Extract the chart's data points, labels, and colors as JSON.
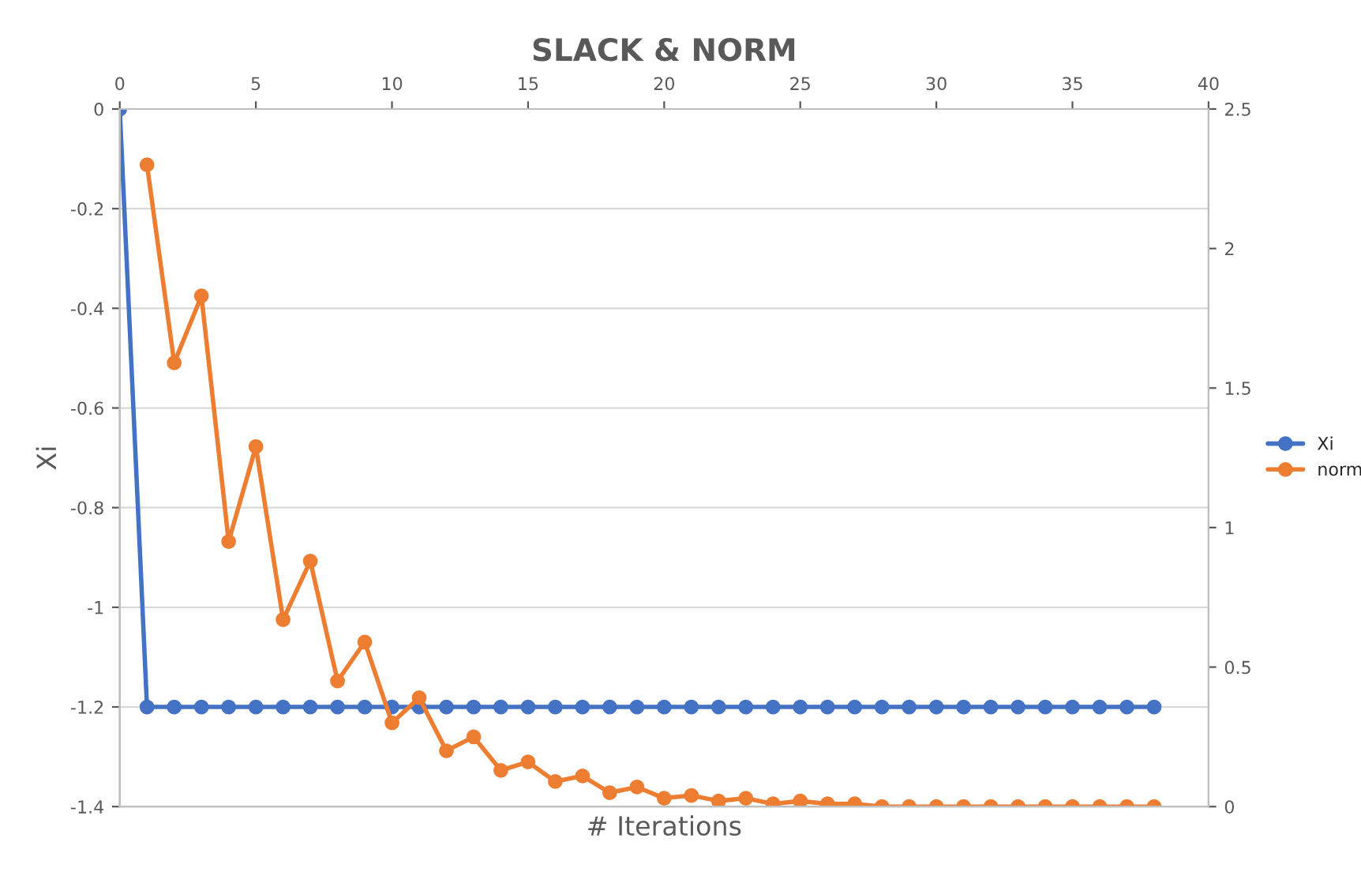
{
  "chart_data": {
    "type": "line",
    "title": "SLACK & NORM",
    "xlabel": "# Iterations",
    "ylabel": "Xi",
    "x": [
      0,
      1,
      2,
      3,
      4,
      5,
      6,
      7,
      8,
      9,
      10,
      11,
      12,
      13,
      14,
      15,
      16,
      17,
      18,
      19,
      20,
      21,
      22,
      23,
      24,
      25,
      26,
      27,
      28,
      29,
      30,
      31,
      32,
      33,
      34,
      35,
      36,
      37,
      38
    ],
    "series": [
      {
        "name": "Xi",
        "color": "#4472c4",
        "values": [
          0,
          -1.2,
          -1.2,
          -1.2,
          -1.2,
          -1.2,
          -1.2,
          -1.2,
          -1.2,
          -1.2,
          -1.2,
          -1.2,
          -1.2,
          -1.2,
          -1.2,
          -1.2,
          -1.2,
          -1.2,
          -1.2,
          -1.2,
          -1.2,
          -1.2,
          -1.2,
          -1.2,
          -1.2,
          -1.2,
          -1.2,
          -1.2,
          -1.2,
          -1.2,
          -1.2,
          -1.2,
          -1.2,
          -1.2,
          -1.2,
          -1.2,
          -1.2,
          -1.2,
          -1.2
        ]
      },
      {
        "name": "norm",
        "color": "#ed7d31",
        "axis": "y2",
        "values": [
          null,
          2.3,
          1.59,
          1.83,
          0.95,
          1.29,
          0.67,
          0.88,
          0.45,
          0.59,
          0.3,
          0.39,
          0.2,
          0.25,
          0.13,
          0.16,
          0.09,
          0.11,
          0.05,
          0.07,
          0.03,
          0.04,
          0.02,
          0.03,
          0.01,
          0.02,
          0.01,
          0.01,
          0.0,
          0.0,
          0.0,
          0.0,
          0.0,
          0.0,
          0.0,
          0.0,
          0.0,
          0.0,
          0.0
        ]
      }
    ],
    "xlim": [
      0,
      40
    ],
    "xticks": [
      0,
      5,
      10,
      15,
      20,
      25,
      30,
      35,
      40
    ],
    "ylim": [
      -1.4,
      0
    ],
    "yticks": [
      -1.4,
      -1.2,
      -1,
      -0.8,
      -0.6,
      -0.4,
      -0.2,
      0
    ],
    "y2lim": [
      0,
      2.5
    ],
    "y2ticks": [
      0,
      0.5,
      1,
      1.5,
      2,
      2.5
    ],
    "grid": "y",
    "legend": "right",
    "marker": "circle",
    "line_style": "solid"
  }
}
